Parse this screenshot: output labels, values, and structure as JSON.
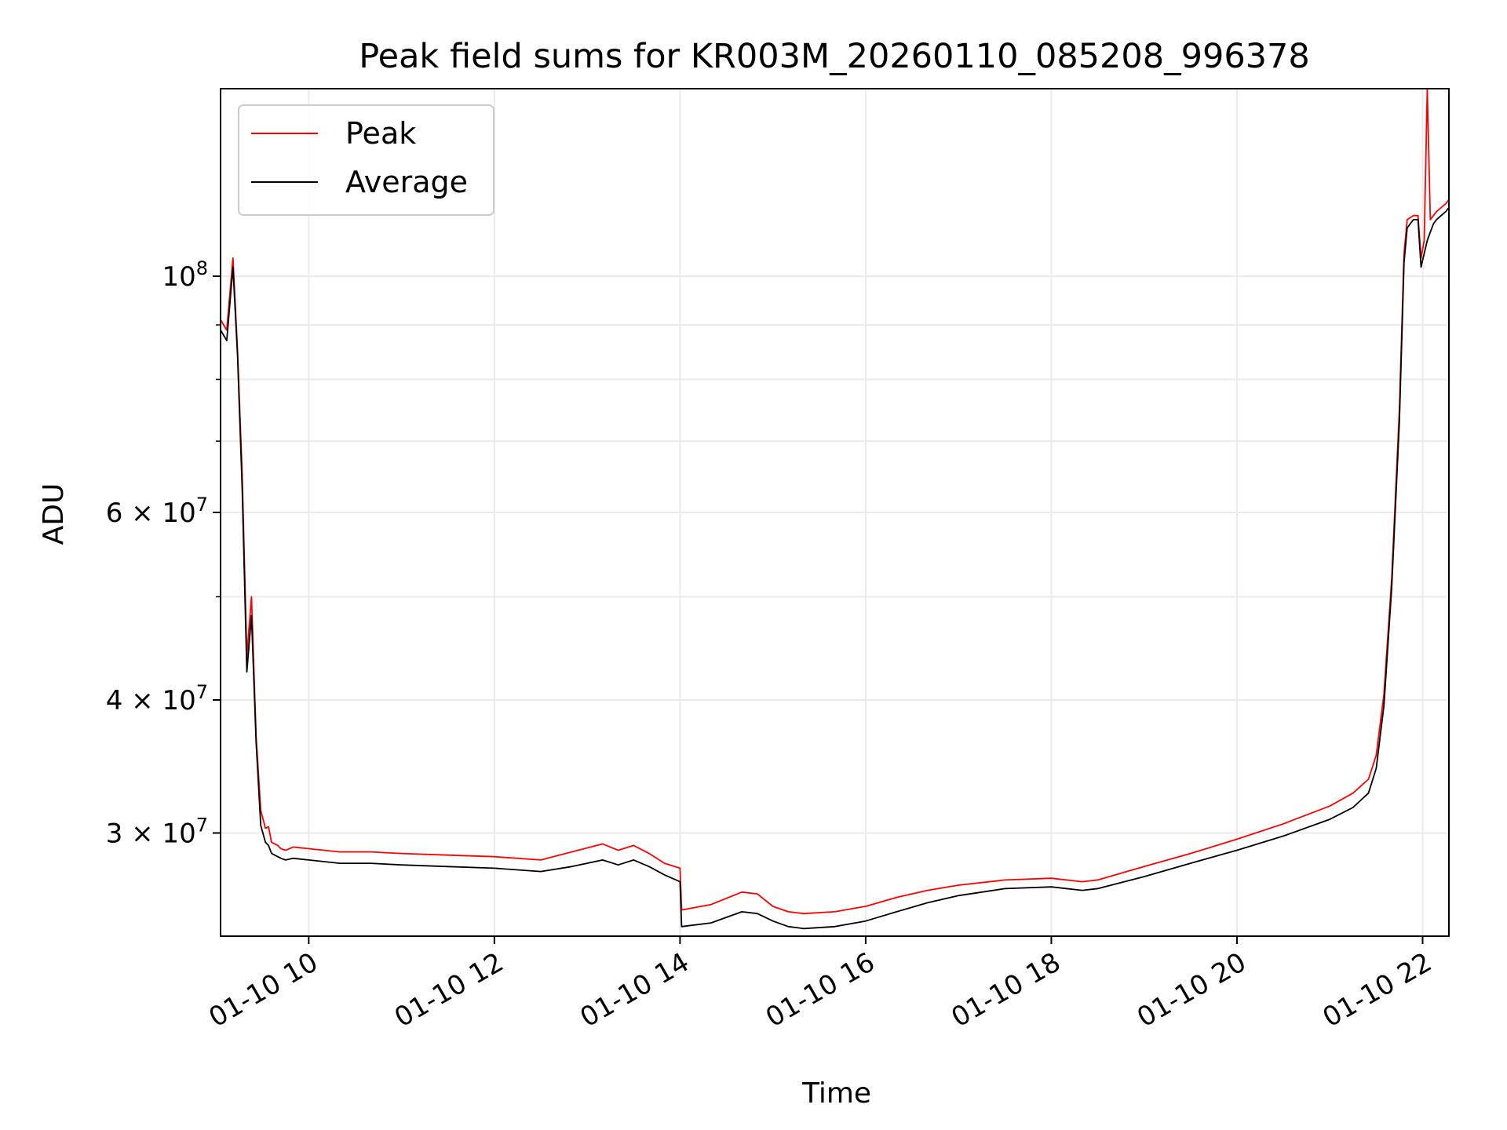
{
  "chart_data": {
    "type": "line",
    "title": "Peak field sums for KR003M_20260110_085208_996378",
    "xlabel": "Time",
    "ylabel": "ADU",
    "yscale": "log",
    "grid": true,
    "legend_position": "top-left",
    "xlim": [
      "01-10 09:03",
      "01-10 22:17"
    ],
    "ylim": [
      24000000,
      150000000
    ],
    "x_ticks": [
      "01-10 10",
      "01-10 12",
      "01-10 14",
      "01-10 16",
      "01-10 18",
      "01-10 20",
      "01-10 22"
    ],
    "y_ticks": [
      {
        "value": 100000000,
        "label": "10^8"
      },
      {
        "value": 60000000,
        "label": "6 × 10^7"
      },
      {
        "value": 40000000,
        "label": "4 × 10^7"
      },
      {
        "value": 30000000,
        "label": "3 × 10^7"
      }
    ],
    "series": [
      {
        "name": "Peak",
        "color": "#ff0000",
        "x": [
          "01-10 09:03",
          "01-10 09:07",
          "01-10 09:11",
          "01-10 09:14",
          "01-10 09:17",
          "01-10 09:20",
          "01-10 09:23",
          "01-10 09:26",
          "01-10 09:29",
          "01-10 09:32",
          "01-10 09:34",
          "01-10 09:36",
          "01-10 09:38",
          "01-10 09:40",
          "01-10 09:42",
          "01-10 09:45",
          "01-10 09:50",
          "01-10 10:00",
          "01-10 10:20",
          "01-10 10:40",
          "01-10 11:00",
          "01-10 11:30",
          "01-10 12:00",
          "01-10 12:30",
          "01-10 12:50",
          "01-10 13:10",
          "01-10 13:20",
          "01-10 13:30",
          "01-10 13:40",
          "01-10 13:50",
          "01-10 14:00",
          "01-10 14:01",
          "01-10 14:20",
          "01-10 14:40",
          "01-10 14:50",
          "01-10 15:00",
          "01-10 15:10",
          "01-10 15:20",
          "01-10 15:40",
          "01-10 16:00",
          "01-10 16:20",
          "01-10 16:40",
          "01-10 17:00",
          "01-10 17:30",
          "01-10 18:00",
          "01-10 18:20",
          "01-10 18:30",
          "01-10 19:00",
          "01-10 19:30",
          "01-10 20:00",
          "01-10 20:30",
          "01-10 21:00",
          "01-10 21:15",
          "01-10 21:25",
          "01-10 21:30",
          "01-10 21:35",
          "01-10 21:40",
          "01-10 21:45",
          "01-10 21:48",
          "01-10 21:50",
          "01-10 21:54",
          "01-10 21:57",
          "01-10 21:59",
          "01-10 22:01",
          "01-10 22:03",
          "01-10 22:05",
          "01-10 22:07",
          "01-10 22:09",
          "01-10 22:12",
          "01-10 22:15",
          "01-10 22:17"
        ],
        "values": [
          91000000,
          89000000,
          104000000,
          85000000,
          65000000,
          44000000,
          50000000,
          37000000,
          31500000,
          30300000,
          30400000,
          29400000,
          29300000,
          29200000,
          29000000,
          28900000,
          29100000,
          29000000,
          28800000,
          28800000,
          28700000,
          28600000,
          28500000,
          28300000,
          28800000,
          29300000,
          28900000,
          29200000,
          28700000,
          28100000,
          27800000,
          25400000,
          25700000,
          26400000,
          26300000,
          25600000,
          25300000,
          25200000,
          25300000,
          25600000,
          26100000,
          26500000,
          26800000,
          27100000,
          27200000,
          27000000,
          27100000,
          27900000,
          28700000,
          29600000,
          30600000,
          31800000,
          32700000,
          33700000,
          35500000,
          40500000,
          52000000,
          75000000,
          105000000,
          113000000,
          114000000,
          114000000,
          104000000,
          108000000,
          150000000,
          113000000,
          114000000,
          115000000,
          116000000,
          117000000,
          118000000
        ]
      },
      {
        "name": "Average",
        "color": "#000000",
        "x": [
          "01-10 09:03",
          "01-10 09:07",
          "01-10 09:11",
          "01-10 09:14",
          "01-10 09:17",
          "01-10 09:20",
          "01-10 09:23",
          "01-10 09:26",
          "01-10 09:29",
          "01-10 09:32",
          "01-10 09:34",
          "01-10 09:36",
          "01-10 09:38",
          "01-10 09:40",
          "01-10 09:42",
          "01-10 09:45",
          "01-10 09:50",
          "01-10 10:00",
          "01-10 10:20",
          "01-10 10:40",
          "01-10 11:00",
          "01-10 11:30",
          "01-10 12:00",
          "01-10 12:30",
          "01-10 12:50",
          "01-10 13:10",
          "01-10 13:20",
          "01-10 13:30",
          "01-10 13:40",
          "01-10 13:50",
          "01-10 14:00",
          "01-10 14:01",
          "01-10 14:20",
          "01-10 14:40",
          "01-10 14:50",
          "01-10 15:00",
          "01-10 15:10",
          "01-10 15:20",
          "01-10 15:40",
          "01-10 16:00",
          "01-10 16:20",
          "01-10 16:40",
          "01-10 17:00",
          "01-10 17:30",
          "01-10 18:00",
          "01-10 18:20",
          "01-10 18:30",
          "01-10 19:00",
          "01-10 19:30",
          "01-10 20:00",
          "01-10 20:30",
          "01-10 21:00",
          "01-10 21:15",
          "01-10 21:25",
          "01-10 21:30",
          "01-10 21:35",
          "01-10 21:40",
          "01-10 21:45",
          "01-10 21:48",
          "01-10 21:50",
          "01-10 21:54",
          "01-10 21:57",
          "01-10 21:59",
          "01-10 22:01",
          "01-10 22:03",
          "01-10 22:05",
          "01-10 22:07",
          "01-10 22:09",
          "01-10 22:12",
          "01-10 22:15",
          "01-10 22:17"
        ],
        "values": [
          89000000,
          87000000,
          102000000,
          84000000,
          63000000,
          42500000,
          48000000,
          36500000,
          30500000,
          29400000,
          29200000,
          28700000,
          28600000,
          28500000,
          28400000,
          28300000,
          28400000,
          28300000,
          28100000,
          28100000,
          28000000,
          27900000,
          27800000,
          27600000,
          27900000,
          28300000,
          28000000,
          28300000,
          27900000,
          27400000,
          27000000,
          24500000,
          24700000,
          25300000,
          25200000,
          24800000,
          24500000,
          24400000,
          24500000,
          24800000,
          25300000,
          25800000,
          26200000,
          26600000,
          26700000,
          26500000,
          26600000,
          27300000,
          28100000,
          28900000,
          29800000,
          30900000,
          31700000,
          32700000,
          34500000,
          39500000,
          51000000,
          73000000,
          103000000,
          111000000,
          113000000,
          113000000,
          102000000,
          105000000,
          108000000,
          110000000,
          112000000,
          113000000,
          114000000,
          115000000,
          116000000
        ]
      }
    ]
  }
}
